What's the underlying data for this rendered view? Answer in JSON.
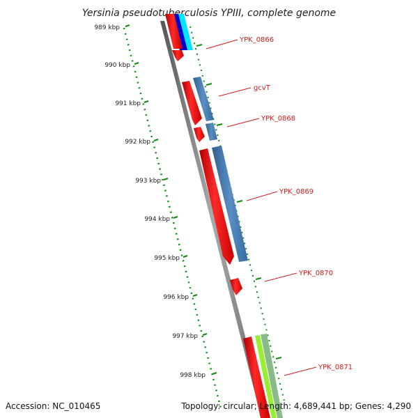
{
  "title": "Yersinia pseudotuberculosis YPIII, complete genome",
  "footer": {
    "accession": "Accession: NC_010465",
    "summary": "Topology: circular; Length: 4,689,441 bp; Genes: 4,290"
  },
  "scale_labels": [
    "989 kbp",
    "990 kbp",
    "991 kbp",
    "992 kbp",
    "993 kbp",
    "994 kbp",
    "995 kbp",
    "996 kbp",
    "997 kbp",
    "998 kbp"
  ],
  "gene_labels": [
    "YPK_0866",
    "gcvT",
    "YPK_0868",
    "YPK_0869",
    "YPK_0870",
    "YPK_0871"
  ],
  "colors": {
    "backbone": "#808080",
    "cds": "#ff0000",
    "blue_feature": "#4a7fb5",
    "cyan_feature": "#00e5ff",
    "navy_feature": "#0000cc",
    "lime_feature": "#99ee33",
    "green_feature": "#88bb88",
    "ruler": "#118811",
    "label": "#d11a1a"
  }
}
